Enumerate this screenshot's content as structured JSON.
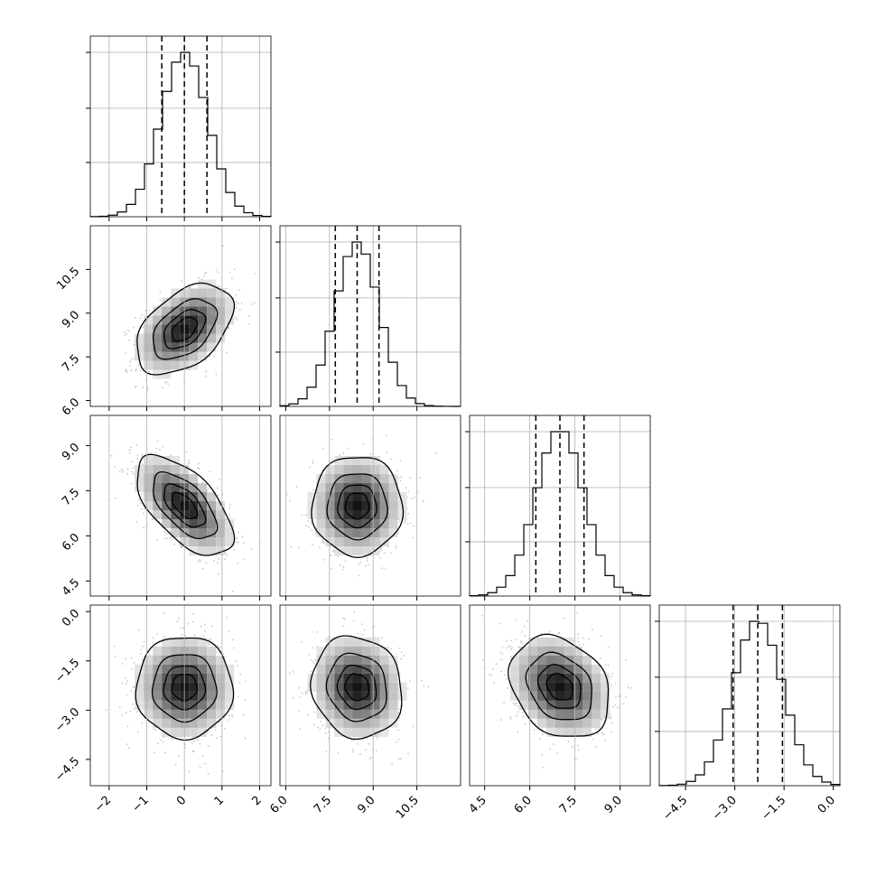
{
  "chart_data": {
    "type": "corner",
    "grid": true,
    "n_params": 4,
    "quantiles": [
      0.16,
      0.5,
      0.84
    ],
    "params": [
      {
        "name": "",
        "mean": 0.0,
        "std": 0.62,
        "range": [
          -2.5,
          2.3
        ],
        "ticks": [
          -2,
          -1,
          0,
          1,
          2
        ],
        "tick_labels": [
          "−2",
          "−1",
          "0",
          "1",
          "2"
        ],
        "quantile_values": [
          -0.6,
          0.0,
          0.6
        ]
      },
      {
        "name": "",
        "mean": 8.45,
        "std": 0.75,
        "range": [
          5.8,
          12.0
        ],
        "ticks": [
          6.0,
          7.5,
          9.0,
          10.5
        ],
        "tick_labels": [
          "6.0",
          "7.5",
          "9.0",
          "10.5"
        ],
        "quantile_values": [
          7.7,
          8.45,
          9.2
        ]
      },
      {
        "name": "",
        "mean": 7.0,
        "std": 0.8,
        "range": [
          4.0,
          10.0
        ],
        "ticks": [
          4.5,
          6.0,
          7.5,
          9.0
        ],
        "tick_labels": [
          "4.5",
          "6.0",
          "7.5",
          "9.0"
        ],
        "quantile_values": [
          6.2,
          7.0,
          7.8
        ]
      },
      {
        "name": "",
        "mean": -2.3,
        "std": 0.75,
        "range": [
          -5.3,
          0.2
        ],
        "ticks": [
          -4.5,
          -3.0,
          -1.5,
          0.0
        ],
        "tick_labels": [
          "−4.5",
          "−3.0",
          "−1.5",
          "0.0"
        ],
        "quantile_values": [
          -3.05,
          -2.3,
          -1.55
        ]
      }
    ],
    "correlations": [
      {
        "pair": [
          0,
          1
        ],
        "rho": 0.45
      },
      {
        "pair": [
          0,
          2
        ],
        "rho": -0.6
      },
      {
        "pair": [
          0,
          3
        ],
        "rho": 0.0
      },
      {
        "pair": [
          1,
          2
        ],
        "rho": 0.0
      },
      {
        "pair": [
          1,
          3
        ],
        "rho": -0.1
      },
      {
        "pair": [
          2,
          3
        ],
        "rho": -0.25
      }
    ],
    "histogram_bins": 20,
    "contour_levels_sigma": [
      0.5,
      1.0,
      1.5,
      2.0
    ]
  }
}
